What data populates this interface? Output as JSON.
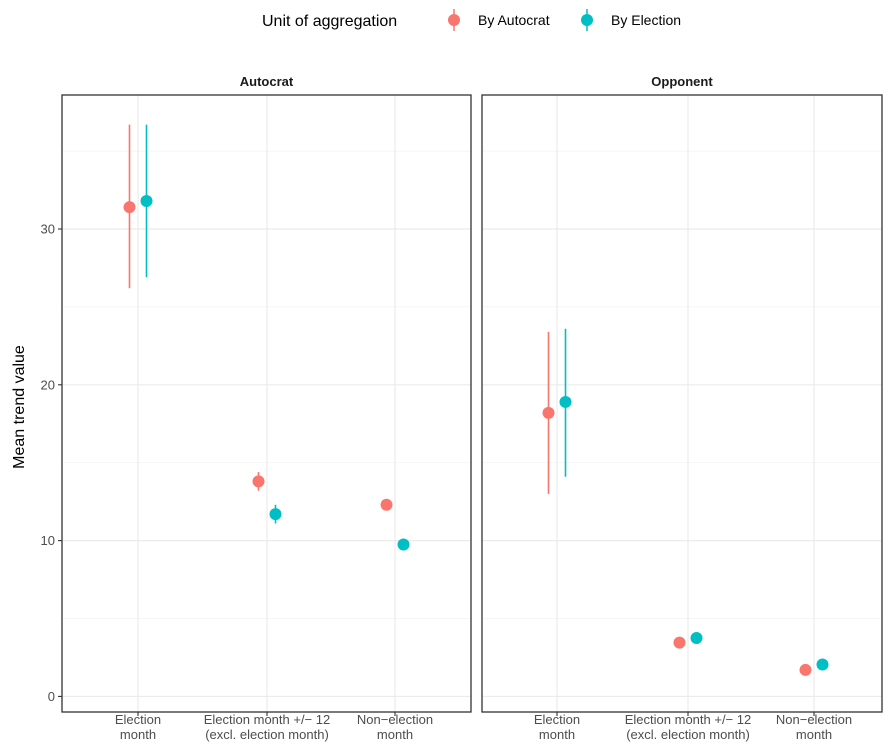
{
  "chart_data": {
    "type": "scatter",
    "ylabel": "Mean trend value",
    "ylim": [
      0,
      38
    ],
    "yticks": [
      0,
      10,
      20,
      30
    ],
    "grid": true,
    "legend": {
      "title": "Unit of aggregation",
      "placement": "top",
      "entries": [
        {
          "name": "By Autocrat",
          "color": "#F8766D"
        },
        {
          "name": "By Election",
          "color": "#00BFC4"
        }
      ]
    },
    "categories": [
      [
        "Election",
        "month"
      ],
      [
        "Election month +/− 12",
        "(excl. election month)"
      ],
      [
        "Non−election",
        "month"
      ]
    ],
    "panels": [
      {
        "title": "Autocrat",
        "series": [
          {
            "name": "By Autocrat",
            "values": [
              31.4,
              13.8,
              12.3
            ],
            "lower": [
              26.2,
              13.2,
              null
            ],
            "upper": [
              36.7,
              14.4,
              null
            ]
          },
          {
            "name": "By Election",
            "values": [
              31.8,
              11.7,
              9.75
            ],
            "lower": [
              26.9,
              11.1,
              null
            ],
            "upper": [
              36.7,
              12.3,
              null
            ]
          }
        ]
      },
      {
        "title": "Opponent",
        "series": [
          {
            "name": "By Autocrat",
            "values": [
              18.2,
              3.45,
              1.7
            ],
            "lower": [
              13.0,
              null,
              null
            ],
            "upper": [
              23.4,
              null,
              null
            ]
          },
          {
            "name": "By Election",
            "values": [
              18.9,
              3.75,
              2.05
            ],
            "lower": [
              14.1,
              null,
              null
            ],
            "upper": [
              23.6,
              null,
              null
            ]
          }
        ]
      }
    ]
  }
}
